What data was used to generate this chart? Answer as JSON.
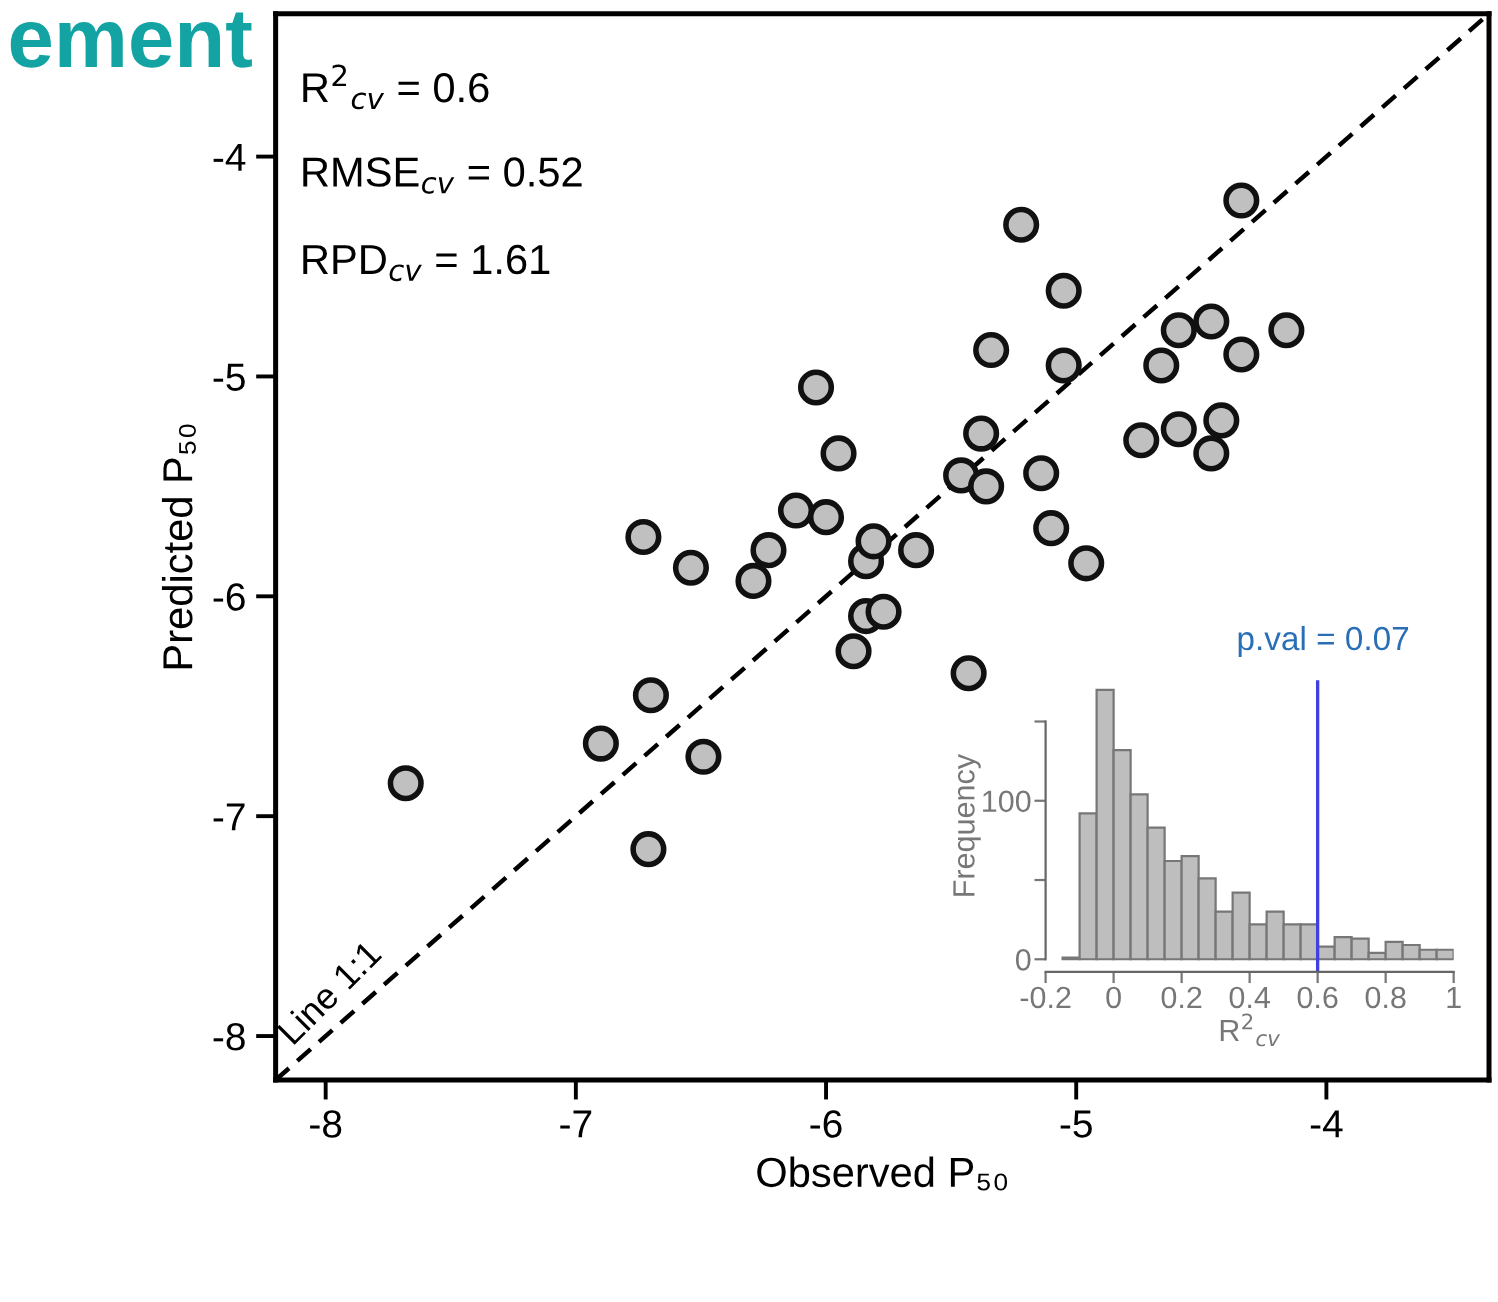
{
  "chart_data": [
    {
      "type": "scatter",
      "title": "ement",
      "xlabel": "Observed P₅₀",
      "ylabel": "Predicted P₅₀",
      "xlim": [
        -8.2,
        -3.35
      ],
      "ylim": [
        -8.2,
        -3.35
      ],
      "xticks": [
        -8,
        -7,
        -6,
        -5,
        -4
      ],
      "yticks": [
        -8,
        -7,
        -6,
        -5,
        -4
      ],
      "grid": false,
      "marker": "circle",
      "annotations": [
        "R$^{2}$$_{cv}$ = 0.6",
        "RMSE$_{cv}$ = 0.52",
        "RPD$_{cv}$ = 1.61"
      ],
      "series": [
        {
          "color": "#c0c0c0",
          "x": [
            -7.68,
            -6.9,
            -6.71,
            -6.7,
            -6.49,
            -6.73,
            -6.54,
            -6.29,
            -6.23,
            -6.12,
            -6.04,
            -6.0,
            -5.95,
            -5.89,
            -5.84,
            -5.77,
            -5.84,
            -5.81,
            -5.64,
            -5.43,
            -5.46,
            -5.38,
            -5.36,
            -5.34,
            -5.22,
            -5.14,
            -5.1,
            -5.05,
            -5.05,
            -4.96,
            -4.74,
            -4.66,
            -4.59,
            -4.59,
            -4.46,
            -4.46,
            -4.42,
            -4.34,
            -4.34,
            -4.16
          ],
          "values": [
            -6.85,
            -6.67,
            -7.15,
            -6.45,
            -6.73,
            -5.73,
            -5.87,
            -5.93,
            -5.79,
            -5.61,
            -5.05,
            -5.64,
            -5.35,
            -6.25,
            -6.09,
            -6.07,
            -5.84,
            -5.75,
            -5.79,
            -6.35,
            -5.45,
            -5.26,
            -5.5,
            -4.88,
            -4.31,
            -5.44,
            -5.69,
            -4.61,
            -4.95,
            -5.85,
            -5.29,
            -4.95,
            -5.24,
            -4.79,
            -4.75,
            -5.35,
            -5.2,
            -4.9,
            -4.2,
            -4.79
          ]
        },
        {
          "type": "line",
          "name": "Line 1:1",
          "color": "#000000",
          "line_style": "dashed",
          "marker": "none",
          "x": [
            -8.2,
            -3.35
          ],
          "values": [
            -8.2,
            -3.35
          ]
        }
      ]
    },
    {
      "type": "histogram",
      "xlabel": "R$^{2}$$_{cv}$",
      "ylabel": "Frequency",
      "color": "#bebebe",
      "bins": [
        -0.15,
        -0.1,
        -0.05,
        0,
        0.05,
        0.1,
        0.15,
        0.2,
        0.25,
        0.3,
        0.35,
        0.4,
        0.45,
        0.5,
        0.55,
        0.6,
        0.65,
        0.7,
        0.75,
        0.8,
        0.85,
        0.9,
        0.95,
        1
      ],
      "values": [
        1,
        92,
        170,
        132,
        104,
        83,
        62,
        65,
        51,
        30,
        42,
        22,
        30,
        22,
        22,
        8,
        14,
        13,
        4,
        11,
        9,
        6,
        6
      ],
      "xlim": [
        -0.2,
        1
      ],
      "ylim": [
        -8,
        176
      ],
      "xticks": [
        -0.2,
        0,
        0.2,
        0.4,
        0.6,
        0.8,
        1
      ],
      "yticks": [
        0,
        {
          "value": 50,
          "label": null
        },
        100,
        {
          "value": 150,
          "label": null
        }
      ],
      "grid": false,
      "annotations": [
        "p.val = 0.07"
      ],
      "ref_lines": [
        {
          "axis": "x",
          "value": 0.6,
          "color": "#4040e0"
        }
      ]
    }
  ]
}
